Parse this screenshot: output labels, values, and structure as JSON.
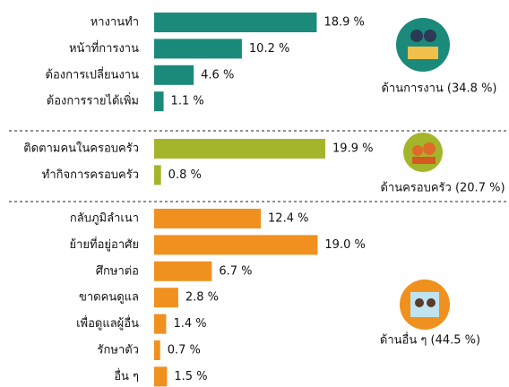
{
  "chart_data": {
    "type": "bar",
    "groups": [
      {
        "label": "ด้านการงาน (34.8 %)",
        "color": "#1b8a7b",
        "categories": [
          "หางานทำ",
          "หน้าที่การงาน",
          "ต้องการเปลี่ยนงาน",
          "ต้องการรายได้เพิ่ม"
        ],
        "values": [
          18.9,
          10.2,
          4.6,
          1.1
        ],
        "value_labels": [
          "18.9 %",
          "10.2 %",
          "4.6 %",
          "1.1 %"
        ]
      },
      {
        "label": "ด้านครอบครัว (20.7 %)",
        "color": "#a4b52b",
        "categories": [
          "ติดตามคนในครอบครัว",
          "ทำกิจการครอบครัว"
        ],
        "values": [
          19.9,
          0.8
        ],
        "value_labels": [
          "19.9 %",
          "0.8 %"
        ]
      },
      {
        "label": "ด้านอื่น ๆ (44.5 %)",
        "color": "#f0901e",
        "categories": [
          "กลับภูมิลำเนา",
          "ย้ายที่อยู่อาศัย",
          "ศึกษาต่อ",
          "ขาดคนดูแล",
          "เพื่อดูแลผู้อื่น",
          "รักษาตัว",
          "อื่น ๆ"
        ],
        "values": [
          12.4,
          19.0,
          6.7,
          2.8,
          1.4,
          0.7,
          1.5
        ],
        "value_labels": [
          "12.4 %",
          "19.0 %",
          "6.7 %",
          "2.8 %",
          "1.4 %",
          "0.7 %",
          "1.5 %"
        ]
      }
    ]
  }
}
